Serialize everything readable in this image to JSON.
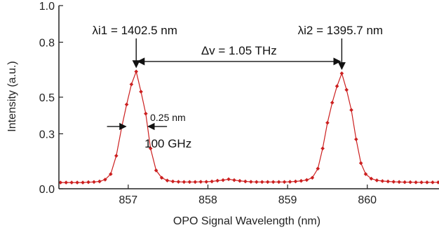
{
  "chart_data": {
    "type": "line",
    "title": "",
    "xlabel": "OPO Signal Wavelength (nm)",
    "ylabel": "Intensity (a.u.)",
    "xlim": [
      856.13,
      860.9
    ],
    "ylim": [
      0.0,
      1.0
    ],
    "x_ticks": [
      857,
      858,
      859,
      860
    ],
    "y_ticks": [
      0.0,
      0.3,
      0.5,
      0.8,
      1.0
    ],
    "y_tick_labels": [
      "0.0",
      "0.3",
      "0.5",
      "0.8",
      "1.0"
    ],
    "grid": false,
    "line_color": "#cc1f1f",
    "marker_color": "#cc1f1f",
    "series": [
      {
        "points": [
          [
            856.15,
            0.034
          ],
          [
            856.22,
            0.034
          ],
          [
            856.29,
            0.034
          ],
          [
            856.36,
            0.034
          ],
          [
            856.43,
            0.034
          ],
          [
            856.5,
            0.036
          ],
          [
            856.57,
            0.037
          ],
          [
            856.64,
            0.04
          ],
          [
            856.71,
            0.05
          ],
          [
            856.78,
            0.08
          ],
          [
            856.85,
            0.18
          ],
          [
            856.92,
            0.34
          ],
          [
            856.98,
            0.46
          ],
          [
            857.04,
            0.57
          ],
          [
            857.1,
            0.64
          ],
          [
            857.16,
            0.53
          ],
          [
            857.22,
            0.41
          ],
          [
            857.28,
            0.22
          ],
          [
            857.35,
            0.1
          ],
          [
            857.42,
            0.06
          ],
          [
            857.49,
            0.045
          ],
          [
            857.56,
            0.04
          ],
          [
            857.63,
            0.038
          ],
          [
            857.7,
            0.037
          ],
          [
            857.77,
            0.037
          ],
          [
            857.84,
            0.037
          ],
          [
            857.91,
            0.038
          ],
          [
            857.98,
            0.038
          ],
          [
            858.05,
            0.04
          ],
          [
            858.12,
            0.044
          ],
          [
            858.19,
            0.047
          ],
          [
            858.26,
            0.052
          ],
          [
            858.33,
            0.047
          ],
          [
            858.4,
            0.043
          ],
          [
            858.47,
            0.04
          ],
          [
            858.54,
            0.038
          ],
          [
            858.61,
            0.037
          ],
          [
            858.68,
            0.037
          ],
          [
            858.75,
            0.037
          ],
          [
            858.82,
            0.037
          ],
          [
            858.89,
            0.037
          ],
          [
            858.96,
            0.037
          ],
          [
            859.03,
            0.038
          ],
          [
            859.1,
            0.04
          ],
          [
            859.17,
            0.043
          ],
          [
            859.24,
            0.048
          ],
          [
            859.31,
            0.06
          ],
          [
            859.38,
            0.11
          ],
          [
            859.44,
            0.22
          ],
          [
            859.5,
            0.36
          ],
          [
            859.56,
            0.47
          ],
          [
            859.62,
            0.56
          ],
          [
            859.68,
            0.63
          ],
          [
            859.74,
            0.54
          ],
          [
            859.8,
            0.43
          ],
          [
            859.86,
            0.27
          ],
          [
            859.92,
            0.14
          ],
          [
            859.98,
            0.08
          ],
          [
            860.05,
            0.055
          ],
          [
            860.12,
            0.046
          ],
          [
            860.19,
            0.042
          ],
          [
            860.26,
            0.04
          ],
          [
            860.33,
            0.038
          ],
          [
            860.4,
            0.037
          ],
          [
            860.47,
            0.036
          ],
          [
            860.54,
            0.036
          ],
          [
            860.61,
            0.035
          ],
          [
            860.68,
            0.035
          ],
          [
            860.75,
            0.035
          ],
          [
            860.82,
            0.035
          ],
          [
            860.89,
            0.035
          ]
        ]
      }
    ],
    "annotations": {
      "peak1_label": "λi1 = 1402.5 nm",
      "peak1_arrow_to": [
        857.1,
        0.64
      ],
      "peak2_label": "λi2 = 1395.7 nm",
      "peak2_arrow_to": [
        859.68,
        0.63
      ],
      "delta_label": "Δv = 1.05 THz",
      "delta_arrow": {
        "x1": 857.1,
        "x2": 859.68,
        "y": 0.695
      },
      "width_label_nm": "0.25 nm",
      "width_label_ghz": "100 GHz",
      "width_arrows": {
        "left_x": 856.98,
        "right_x": 857.24,
        "y": 0.34
      }
    }
  }
}
